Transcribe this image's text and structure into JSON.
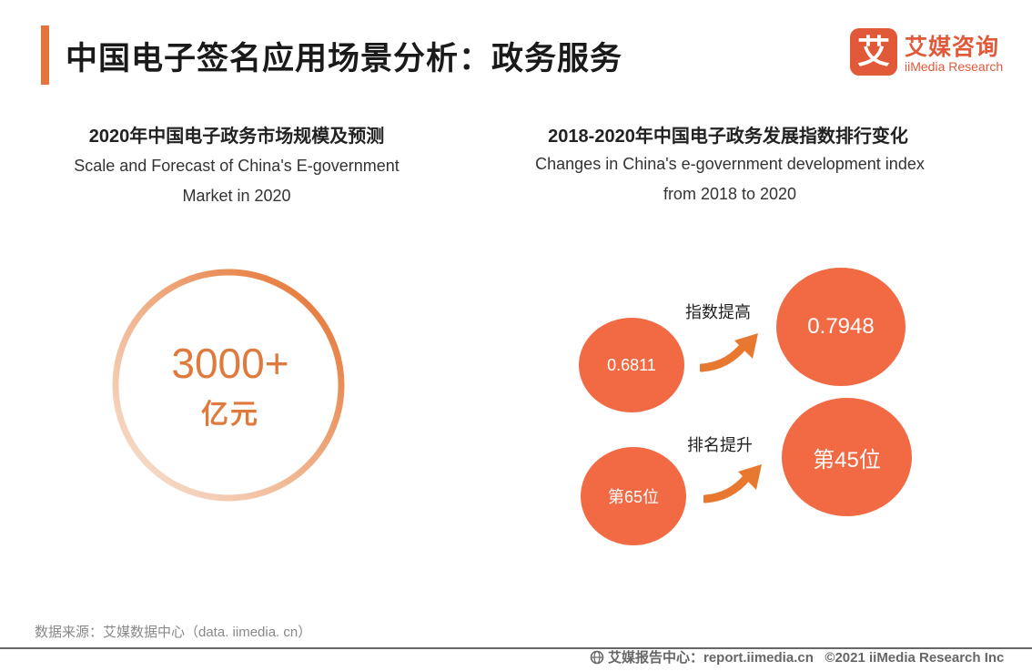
{
  "header": {
    "title": "中国电子签名应用场景分析：政务服务",
    "logo_mark": "艾",
    "logo_cn": "艾媒咨询",
    "logo_en": "iiMedia Research",
    "accent_color": "#e8733a"
  },
  "left_panel": {
    "title_cn": "2020年中国电子政务市场规模及预测",
    "title_en_line1": "Scale and Forecast of China's E-government",
    "title_en_line2": "Market in 2020",
    "value": "3000+",
    "unit": "亿元"
  },
  "right_panel": {
    "title_cn": "2018-2020年中国电子政务发展指数排行变化",
    "title_en_line1": "Changes in China's e-government development index",
    "title_en_line2": "from 2018 to 2020",
    "index_row": {
      "from": "0.6811",
      "label": "指数提高",
      "to": "0.7948"
    },
    "rank_row": {
      "from": "第65位",
      "label": "排名提升",
      "to": "第45位"
    },
    "bubble_color": "#f26a44"
  },
  "footer": {
    "source": "数据来源：艾媒数据中心（data. iimedia. cn）",
    "site": "艾媒报告中心：report.iimedia.cn",
    "copyright": "©2021  iiMedia Research  Inc",
    "icon": "globe-icon"
  }
}
